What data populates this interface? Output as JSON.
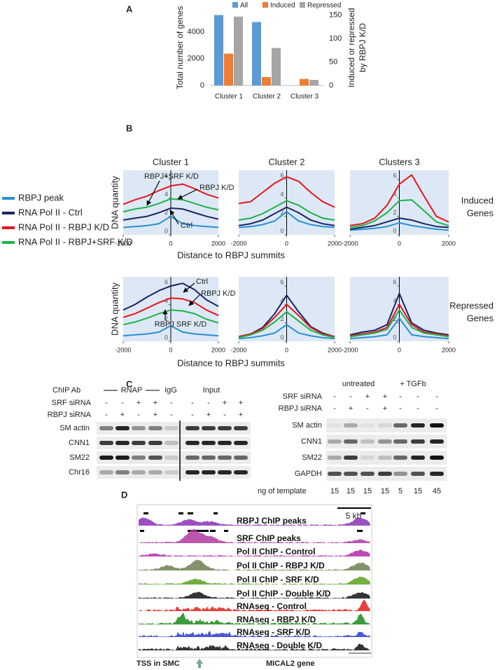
{
  "panel_labels": {
    "a": "A",
    "b": "B",
    "c": "C",
    "d": "D"
  },
  "chart_data": [
    {
      "type": "bar",
      "categories": [
        "Cluster 1",
        "Cluster 2",
        "Cluster 3"
      ],
      "series": [
        {
          "name": "All",
          "color": "#5b9bd5",
          "values": [
            5260,
            4740,
            null
          ]
        },
        {
          "name": "Induced",
          "color": "#ed7d31",
          "axis": "y2",
          "values": [
            68,
            18,
            14
          ]
        },
        {
          "name": "Repressed",
          "color": "#a5a5a5",
          "axis": "y2",
          "values": [
            147,
            80,
            12
          ]
        }
      ],
      "ylabel": "Total number of genes",
      "y2label": [
        "Induced or repressed",
        "by RBPJ K/D"
      ],
      "ylim": [
        0,
        5600
      ],
      "yticks": [
        0,
        2000,
        4000
      ],
      "y2lim": [
        0,
        160
      ],
      "y2ticks": [
        0,
        50,
        100,
        150
      ]
    },
    {
      "type": "line",
      "title": "Cluster 1",
      "x": [
        -2000,
        -1500,
        -1000,
        -500,
        0,
        500,
        1000,
        1500,
        2000
      ],
      "xlim": [
        -2000,
        2000
      ],
      "xticks": [
        -2000,
        0,
        2000
      ],
      "ylim": [
        0,
        7
      ],
      "yticks": [
        0,
        2,
        4,
        6
      ],
      "annotations": [
        "RBPJ+SRF K/D",
        "RBPJ K/D",
        "Ctrl"
      ],
      "series": [
        {
          "name": "RBPJ peak",
          "color": "#2a8fd4",
          "values": [
            0.8,
            0.9,
            1.0,
            1.2,
            2.0,
            1.2,
            1.0,
            0.9,
            0.8
          ]
        },
        {
          "name": "RNA Pol II - Ctrl",
          "color": "#1a2466",
          "values": [
            1.6,
            1.8,
            2.0,
            2.4,
            2.9,
            2.8,
            2.4,
            2.0,
            1.7
          ]
        },
        {
          "name": "RNA Pol II - RBPJ K/D",
          "color": "#e8141c",
          "values": [
            3.3,
            3.8,
            4.2,
            4.8,
            5.3,
            5.5,
            5.0,
            4.4,
            4.0
          ]
        },
        {
          "name": "RNA Pol II - RBPJ+SRF K/D",
          "color": "#1db34a",
          "values": [
            2.5,
            2.8,
            3.0,
            3.4,
            3.9,
            3.8,
            3.4,
            3.0,
            2.7
          ]
        }
      ]
    },
    {
      "type": "line",
      "title": "Cluster 2",
      "x": [
        -2000,
        -1500,
        -1000,
        -500,
        0,
        500,
        1000,
        1500,
        2000
      ],
      "xlim": [
        -2000,
        2000
      ],
      "xticks": [
        -2000,
        0,
        2000
      ],
      "ylim": [
        0,
        7
      ],
      "yticks": [
        0,
        2,
        4,
        6
      ],
      "series": [
        {
          "name": "RBPJ peak",
          "color": "#2a8fd4",
          "values": [
            0.8,
            0.9,
            1.1,
            1.5,
            2.5,
            1.5,
            1.1,
            0.9,
            0.8
          ]
        },
        {
          "name": "RNA Pol II - Ctrl",
          "color": "#1a2466",
          "values": [
            1.0,
            1.2,
            1.6,
            2.3,
            3.0,
            2.4,
            1.6,
            1.2,
            1.0
          ]
        },
        {
          "name": "RNA Pol II - RBPJ K/D",
          "color": "#e8141c",
          "values": [
            3.4,
            3.6,
            4.6,
            5.6,
            6.3,
            5.8,
            4.6,
            3.6,
            3.0
          ]
        },
        {
          "name": "RNA Pol II - RBPJ+SRF K/D",
          "color": "#1db34a",
          "values": [
            1.6,
            1.8,
            2.3,
            3.0,
            3.7,
            3.2,
            2.4,
            1.8,
            1.6
          ]
        }
      ]
    },
    {
      "type": "line",
      "title": "Clusters 3",
      "x": [
        -2000,
        -1500,
        -1000,
        -500,
        0,
        500,
        1000,
        1500,
        2000
      ],
      "xlim": [
        -2000,
        2000
      ],
      "xticks": [
        -2000,
        0,
        2000
      ],
      "ylim": [
        0,
        7
      ],
      "yticks": [
        0,
        2,
        4,
        6
      ],
      "series": [
        {
          "name": "RBPJ peak",
          "color": "#2a8fd4",
          "values": [
            0.5,
            0.6,
            0.7,
            0.9,
            1.3,
            1.0,
            0.8,
            0.6,
            0.5
          ]
        },
        {
          "name": "RNA Pol II - Ctrl",
          "color": "#1a2466",
          "values": [
            0.6,
            0.8,
            1.0,
            1.4,
            1.8,
            1.6,
            1.2,
            0.9,
            0.8
          ]
        },
        {
          "name": "RNA Pol II - RBPJ K/D",
          "color": "#e8141c",
          "values": [
            1.0,
            1.2,
            1.8,
            3.2,
            5.5,
            6.5,
            4.2,
            2.0,
            1.4
          ]
        },
        {
          "name": "RNA Pol II - RBPJ+SRF K/D",
          "color": "#1db34a",
          "values": [
            0.8,
            1.0,
            1.5,
            2.4,
            3.7,
            3.8,
            2.6,
            1.4,
            1.0
          ]
        }
      ]
    },
    {
      "type": "line",
      "x": [
        -2000,
        -1500,
        -1000,
        -500,
        0,
        500,
        1000,
        1500,
        2000
      ],
      "xlim": [
        -2000,
        2000
      ],
      "xticks": [
        -2000,
        0,
        2000
      ],
      "ylim": [
        0,
        7
      ],
      "yticks": [
        0,
        2,
        4,
        6
      ],
      "annotations": [
        "Ctrl",
        "RBPJ K/D",
        "RBPJ SRF K/D"
      ],
      "series": [
        {
          "name": "RBPJ peak",
          "color": "#2a8fd4",
          "values": [
            0.6,
            0.7,
            0.8,
            1.0,
            1.7,
            1.0,
            0.8,
            0.7,
            0.6
          ]
        },
        {
          "name": "RNA Pol II - Ctrl",
          "color": "#1a2466",
          "values": [
            3.4,
            4.0,
            4.8,
            5.5,
            6.0,
            6.3,
            5.6,
            4.5,
            3.8
          ]
        },
        {
          "name": "RNA Pol II - RBPJ K/D",
          "color": "#e8141c",
          "values": [
            2.6,
            3.0,
            3.6,
            4.2,
            4.7,
            4.6,
            4.2,
            3.4,
            2.8
          ]
        },
        {
          "name": "RNA Pol II - RBPJ+SRF K/D",
          "color": "#1db34a",
          "values": [
            1.8,
            2.1,
            2.5,
            3.0,
            3.4,
            3.3,
            3.0,
            2.4,
            2.0
          ]
        }
      ]
    },
    {
      "type": "line",
      "x": [
        -2000,
        -1500,
        -1000,
        -500,
        0,
        500,
        1000,
        1500,
        2000
      ],
      "xlim": [
        -2000,
        2000
      ],
      "xticks": [
        -2000,
        0,
        2000
      ],
      "ylim": [
        0,
        7
      ],
      "yticks": [
        0,
        2,
        4,
        6
      ],
      "series": [
        {
          "name": "RBPJ peak",
          "color": "#2a8fd4",
          "values": [
            0.3,
            0.4,
            0.6,
            0.9,
            1.8,
            0.9,
            0.6,
            0.4,
            0.3
          ]
        },
        {
          "name": "RNA Pol II - Ctrl",
          "color": "#1a2466",
          "values": [
            0.5,
            0.8,
            1.5,
            3.0,
            5.0,
            3.2,
            1.6,
            0.9,
            0.5
          ]
        },
        {
          "name": "RNA Pol II - RBPJ K/D",
          "color": "#e8141c",
          "values": [
            0.5,
            0.8,
            1.4,
            2.6,
            4.0,
            2.8,
            1.5,
            0.8,
            0.5
          ]
        },
        {
          "name": "RNA Pol II - RBPJ+SRF K/D",
          "color": "#1db34a",
          "values": [
            0.4,
            0.7,
            1.2,
            2.1,
            3.2,
            2.2,
            1.2,
            0.7,
            0.4
          ]
        }
      ]
    },
    {
      "type": "line",
      "x": [
        -2000,
        -1500,
        -1000,
        -500,
        0,
        500,
        1000,
        1500,
        2000
      ],
      "xlim": [
        -2000,
        2000
      ],
      "xticks": [
        -2000,
        0,
        2000
      ],
      "ylim": [
        0,
        7
      ],
      "yticks": [
        0,
        2,
        4,
        6
      ],
      "series": [
        {
          "name": "RBPJ peak",
          "color": "#2a8fd4",
          "values": [
            0.3,
            0.4,
            0.5,
            0.7,
            2.5,
            0.7,
            0.5,
            0.4,
            0.3
          ]
        },
        {
          "name": "RNA Pol II - Ctrl",
          "color": "#1a2466",
          "values": [
            0.7,
            1.0,
            1.2,
            1.8,
            5.2,
            2.0,
            1.2,
            0.9,
            0.7
          ]
        },
        {
          "name": "RNA Pol II - RBPJ K/D",
          "color": "#e8141c",
          "values": [
            0.6,
            0.8,
            1.0,
            1.5,
            4.0,
            1.8,
            1.0,
            0.8,
            0.6
          ]
        },
        {
          "name": "RNA Pol II - RBPJ+SRF K/D",
          "color": "#1db34a",
          "values": [
            0.5,
            0.7,
            0.9,
            1.3,
            3.4,
            1.5,
            0.9,
            0.7,
            0.5
          ]
        }
      ]
    }
  ],
  "panel_b": {
    "x_axis_title": "Distance to RBPJ summits",
    "y_axis_title": "DNA quantity",
    "row_labels": [
      [
        "Induced",
        "Genes"
      ],
      [
        "Repressed",
        "Genes"
      ]
    ]
  },
  "panel_c": {
    "chip_ab_label": "ChIP Ab",
    "rnap_label": "RNAP",
    "igg_label": "IgG",
    "input_label": "Input",
    "left_rows": [
      {
        "label": "SRF siRNA",
        "signs": [
          "-",
          "-",
          "+",
          "+",
          "-",
          "-",
          "-",
          "+",
          "+"
        ]
      },
      {
        "label": "RBPJ siRNA",
        "signs": [
          "-",
          "+",
          "-",
          "+",
          "-",
          "-",
          "+",
          "-",
          "+"
        ]
      }
    ],
    "left_genes": [
      "SM actin",
      "CNN1",
      "SM22",
      "Chr16"
    ],
    "right_groups": [
      "untreated",
      "+ TGFb"
    ],
    "right_rows": [
      {
        "label": "SRF siRNA",
        "signs": [
          "-",
          "-",
          "+",
          "+",
          "-",
          "-",
          "-"
        ]
      },
      {
        "label": "RBPJ siRNA",
        "signs": [
          "-",
          "+",
          "-",
          "+",
          "-",
          "-",
          "-"
        ]
      }
    ],
    "right_genes": [
      "SM actin",
      "CNN1",
      "SM22",
      "GAPDH"
    ],
    "template_label": "ng of template",
    "template_amounts": [
      15,
      15,
      15,
      15,
      5,
      15,
      45
    ]
  },
  "panel_d": {
    "scale_bar": "5 kb",
    "tracks": [
      "RBPJ ChIP peaks",
      "SRF ChIP peaks",
      "Pol II ChIP - Control",
      "Pol II ChIP - RBPJ K/D",
      "Pol II ChIP - SRF K/D",
      "Pol II ChIP - Double K/D",
      "RNAseq - Control",
      "RNAseq - RBPJ K/D",
      "RNAseq - SRF K/D",
      "RNAseq - Double K/D"
    ],
    "tss_label": "TSS in SMC",
    "gene_label": "MICAL2 gene"
  }
}
